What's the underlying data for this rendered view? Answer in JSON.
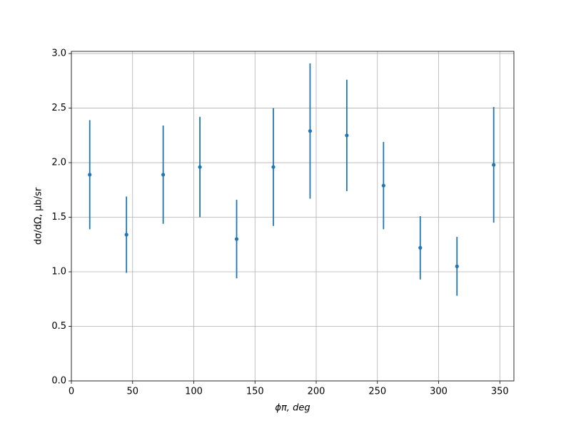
{
  "chart_data": {
    "type": "scatter",
    "xlabel": "ϕπ, deg",
    "ylabel": "dσ/dΩ, μb/sr",
    "x": [
      15,
      45,
      75,
      105,
      135,
      165,
      195,
      225,
      255,
      285,
      315,
      345
    ],
    "values": [
      1.89,
      1.34,
      1.89,
      1.96,
      1.3,
      1.96,
      2.29,
      2.25,
      1.79,
      1.22,
      1.05,
      1.98
    ],
    "errors": [
      0.5,
      0.35,
      0.45,
      0.46,
      0.36,
      0.54,
      0.62,
      0.51,
      0.4,
      0.29,
      0.27,
      0.53
    ],
    "color": "#1f77b4",
    "xlim": [
      0,
      361.5
    ],
    "xticks": [
      0,
      50,
      100,
      150,
      200,
      250,
      300,
      350
    ],
    "ylim": [
      0,
      3.02
    ],
    "yticks": [
      {
        "value": 0,
        "label": "0.0"
      },
      {
        "value": 0.5,
        "label": "0.5"
      },
      {
        "value": 1,
        "label": "1.0"
      },
      {
        "value": 1.5,
        "label": "1.5"
      },
      {
        "value": 2,
        "label": "2.0"
      },
      {
        "value": 2.5,
        "label": "2.5"
      },
      {
        "value": 3,
        "label": "3.0"
      }
    ],
    "grid": true
  }
}
